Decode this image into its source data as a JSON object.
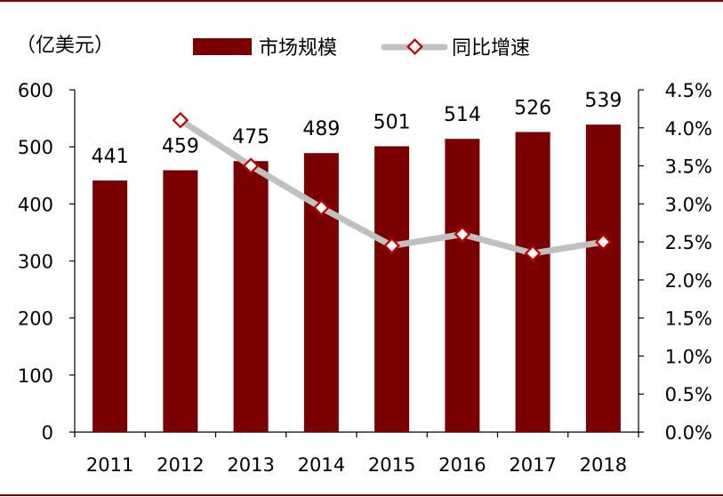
{
  "chart_data": {
    "type": "bar+line",
    "unit_label": "（亿美元）",
    "categories": [
      "2011",
      "2012",
      "2013",
      "2014",
      "2015",
      "2016",
      "2017",
      "2018"
    ],
    "series": [
      {
        "name": "市场规模",
        "kind": "bar",
        "axis": "left",
        "values": [
          441,
          459,
          475,
          489,
          501,
          514,
          526,
          539
        ],
        "data_labels": [
          "441",
          "459",
          "475",
          "489",
          "501",
          "514",
          "526",
          "539"
        ],
        "color": "#7a0000"
      },
      {
        "name": "同比增速",
        "kind": "line",
        "axis": "right",
        "values": [
          null,
          4.1,
          3.5,
          2.95,
          2.45,
          2.6,
          2.35,
          2.5
        ],
        "line_color": "#c0c0c0",
        "marker_color": "#c00000"
      }
    ],
    "y_left": {
      "ylim": [
        0,
        600
      ],
      "ticks": [
        "0",
        "100",
        "200",
        "300",
        "400",
        "500",
        "600"
      ]
    },
    "y_right": {
      "ylim": [
        0,
        4.5
      ],
      "ticks": [
        "0.0%",
        "0.5%",
        "1.0%",
        "1.5%",
        "2.0%",
        "2.5%",
        "3.0%",
        "3.5%",
        "4.0%",
        "4.5%"
      ]
    },
    "legend_position": "top",
    "grid": false
  },
  "colors": {
    "frame_line": "#7a0000",
    "axis": "#000000"
  }
}
